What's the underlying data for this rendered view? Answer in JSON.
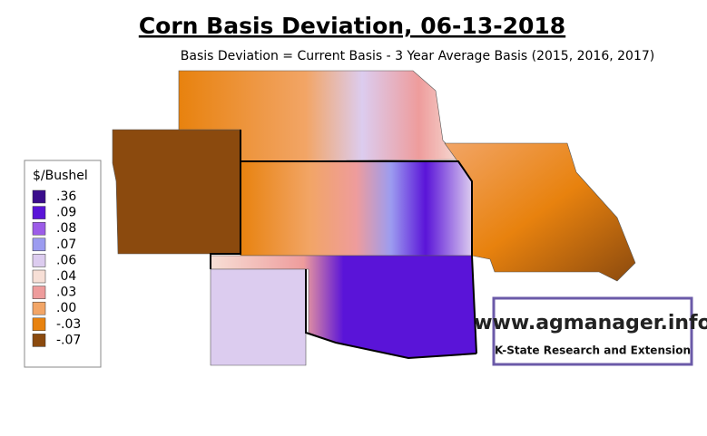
{
  "title": "Corn Basis Deviation, 06-13-2018",
  "subtitle": "Basis Deviation = Current Basis - 3 Year Average Basis (2015, 2016, 2017)",
  "legend": {
    "title": "$/Bushel",
    "items": [
      {
        "label": ".36",
        "color": "#3a0c8c"
      },
      {
        "label": ".09",
        "color": "#5a14d8"
      },
      {
        "label": ".08",
        "color": "#9c5ce8"
      },
      {
        "label": ".07",
        "color": "#9c9cf0"
      },
      {
        "label": ".06",
        "color": "#dcccef"
      },
      {
        "label": ".04",
        "color": "#f7dfd6"
      },
      {
        "label": ".03",
        "color": "#ee9c9c"
      },
      {
        "label": ".00",
        "color": "#f2a566"
      },
      {
        "label": "-.03",
        "color": "#e8820e"
      },
      {
        "label": "-.07",
        "color": "#8b4a0e"
      }
    ]
  },
  "logo": {
    "url": "www.agmanager.info",
    "org": "K-State Research and Extension"
  }
}
